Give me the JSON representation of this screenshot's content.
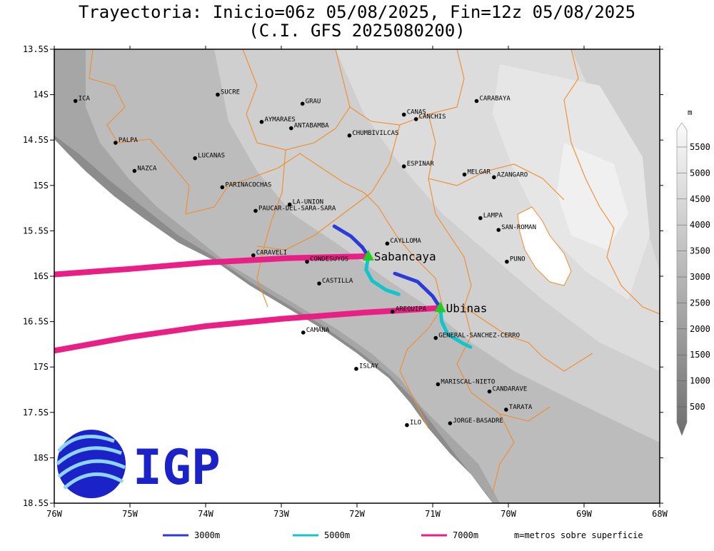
{
  "title": {
    "line1": "Trayectoria: Inicio=06z 05/08/2025, Fin=12z 05/08/2025",
    "line2": "(C.I. GFS 2025080200)"
  },
  "map": {
    "lon_range": [
      -76,
      -68
    ],
    "lat_range": [
      -18.5,
      -13.5
    ],
    "x_ticks": [
      {
        "v": -76,
        "label": "76W"
      },
      {
        "v": -75,
        "label": "75W"
      },
      {
        "v": -74,
        "label": "74W"
      },
      {
        "v": -73,
        "label": "73W"
      },
      {
        "v": -72,
        "label": "72W"
      },
      {
        "v": -71,
        "label": "71W"
      },
      {
        "v": -70,
        "label": "70W"
      },
      {
        "v": -69,
        "label": "69W"
      },
      {
        "v": -68,
        "label": "68W"
      }
    ],
    "y_ticks": [
      {
        "v": -13.5,
        "label": "13.5S"
      },
      {
        "v": -14,
        "label": "14S"
      },
      {
        "v": -14.5,
        "label": "14.5S"
      },
      {
        "v": -15,
        "label": "15S"
      },
      {
        "v": -15.5,
        "label": "15.5S"
      },
      {
        "v": -16,
        "label": "16S"
      },
      {
        "v": -16.5,
        "label": "16.5S"
      },
      {
        "v": -17,
        "label": "17S"
      },
      {
        "v": -17.5,
        "label": "17.5S"
      },
      {
        "v": -18,
        "label": "18S"
      },
      {
        "v": -18.5,
        "label": "18.5S"
      }
    ]
  },
  "places": [
    {
      "name": "ICA",
      "lon": -75.72,
      "lat": -14.07
    },
    {
      "name": "SUCRE",
      "lon": -73.84,
      "lat": -14.0
    },
    {
      "name": "GRAU",
      "lon": -72.72,
      "lat": -14.1
    },
    {
      "name": "AYMARAES",
      "lon": -73.26,
      "lat": -14.3
    },
    {
      "name": "ANTABAMBA",
      "lon": -72.87,
      "lat": -14.37
    },
    {
      "name": "CHUMBIVILCAS",
      "lon": -72.1,
      "lat": -14.45
    },
    {
      "name": "CANAS",
      "lon": -71.38,
      "lat": -14.22
    },
    {
      "name": "CANCHIS",
      "lon": -71.22,
      "lat": -14.27
    },
    {
      "name": "CARABAYA",
      "lon": -70.42,
      "lat": -14.07
    },
    {
      "name": "PALPA",
      "lon": -75.19,
      "lat": -14.53
    },
    {
      "name": "LUCANAS",
      "lon": -74.14,
      "lat": -14.7
    },
    {
      "name": "NAZCA",
      "lon": -74.94,
      "lat": -14.84
    },
    {
      "name": "ESPINAR",
      "lon": -71.38,
      "lat": -14.79
    },
    {
      "name": "MELGAR",
      "lon": -70.58,
      "lat": -14.88
    },
    {
      "name": "AZANGARO",
      "lon": -70.19,
      "lat": -14.91
    },
    {
      "name": "PARINACOCHAS",
      "lon": -73.78,
      "lat": -15.02
    },
    {
      "name": "LA-UNION",
      "lon": -72.89,
      "lat": -15.21
    },
    {
      "name": "PAUCAR-DEL-SARA-SARA",
      "lon": -73.34,
      "lat": -15.28
    },
    {
      "name": "LAMPA",
      "lon": -70.37,
      "lat": -15.36
    },
    {
      "name": "SAN-ROMAN",
      "lon": -70.13,
      "lat": -15.49
    },
    {
      "name": "CAYLLOMA",
      "lon": -71.6,
      "lat": -15.64
    },
    {
      "name": "CARAVELI",
      "lon": -73.37,
      "lat": -15.77
    },
    {
      "name": "CONDESUYOS",
      "lon": -72.66,
      "lat": -15.84
    },
    {
      "name": "PUNO",
      "lon": -70.02,
      "lat": -15.84
    },
    {
      "name": "CASTILLA",
      "lon": -72.5,
      "lat": -16.08
    },
    {
      "name": "AREQUIPA",
      "lon": -71.53,
      "lat": -16.39
    },
    {
      "name": "CAMANA",
      "lon": -72.71,
      "lat": -16.62
    },
    {
      "name": "GENERAL-SANCHEZ-CERRO",
      "lon": -70.96,
      "lat": -16.68
    },
    {
      "name": "ISLAY",
      "lon": -72.01,
      "lat": -17.02
    },
    {
      "name": "MARISCAL-NIETO",
      "lon": -70.93,
      "lat": -17.19
    },
    {
      "name": "CANDARAVE",
      "lon": -70.25,
      "lat": -17.27
    },
    {
      "name": "TARATA",
      "lon": -70.03,
      "lat": -17.47
    },
    {
      "name": "ILO",
      "lon": -71.34,
      "lat": -17.64
    },
    {
      "name": "JORGE-BASADRE",
      "lon": -70.77,
      "lat": -17.62
    }
  ],
  "volcanoes": [
    {
      "name": "Sabancaya",
      "lon": -71.85,
      "lat": -15.78
    },
    {
      "name": "Ubinas",
      "lon": -70.9,
      "lat": -16.35
    }
  ],
  "trajectories": [
    {
      "volcano": "Sabancaya",
      "level": "3000m",
      "color": "#2a3bd8",
      "points": [
        [
          -71.85,
          -15.78
        ],
        [
          -71.93,
          -15.68
        ],
        [
          -72.08,
          -15.56
        ],
        [
          -72.3,
          -15.45
        ]
      ]
    },
    {
      "volcano": "Sabancaya",
      "level": "5000m",
      "color": "#12c4cc",
      "points": [
        [
          -71.85,
          -15.78
        ],
        [
          -71.88,
          -15.93
        ],
        [
          -71.8,
          -16.05
        ],
        [
          -71.62,
          -16.15
        ],
        [
          -71.45,
          -16.2
        ]
      ]
    },
    {
      "volcano": "Sabancaya",
      "level": "7000m",
      "color": "#ea1f86",
      "points": [
        [
          -71.85,
          -15.78
        ],
        [
          -72.9,
          -15.8
        ],
        [
          -74.0,
          -15.85
        ],
        [
          -75.0,
          -15.92
        ],
        [
          -76.0,
          -15.98
        ]
      ]
    },
    {
      "volcano": "Ubinas",
      "level": "3000m",
      "color": "#2a3bd8",
      "points": [
        [
          -70.9,
          -16.35
        ],
        [
          -71.0,
          -16.22
        ],
        [
          -71.2,
          -16.06
        ],
        [
          -71.5,
          -15.97
        ]
      ]
    },
    {
      "volcano": "Ubinas",
      "level": "5000m",
      "color": "#12c4cc",
      "points": [
        [
          -70.9,
          -16.35
        ],
        [
          -70.88,
          -16.5
        ],
        [
          -70.8,
          -16.64
        ],
        [
          -70.6,
          -16.74
        ],
        [
          -70.5,
          -16.78
        ]
      ]
    },
    {
      "volcano": "Ubinas",
      "level": "7000m",
      "color": "#ea1f86",
      "points": [
        [
          -70.9,
          -16.35
        ],
        [
          -71.9,
          -16.4
        ],
        [
          -73.0,
          -16.47
        ],
        [
          -74.0,
          -16.55
        ],
        [
          -75.0,
          -16.67
        ],
        [
          -76.0,
          -16.82
        ]
      ]
    }
  ],
  "colorbar": {
    "unit": "m",
    "labels": [
      "5500",
      "5000",
      "4500",
      "4000",
      "3500",
      "3000",
      "2500",
      "2000",
      "1500",
      "1000",
      "500"
    ]
  },
  "legend": {
    "items": [
      {
        "label": "3000m",
        "color": "#2a3bd8"
      },
      {
        "label": "5000m",
        "color": "#12c4cc"
      },
      {
        "label": "7000m",
        "color": "#ea1f86"
      }
    ],
    "note": "m=metros sobre superficie"
  },
  "logo": {
    "text": "IGP",
    "color": "#1a22c8"
  }
}
